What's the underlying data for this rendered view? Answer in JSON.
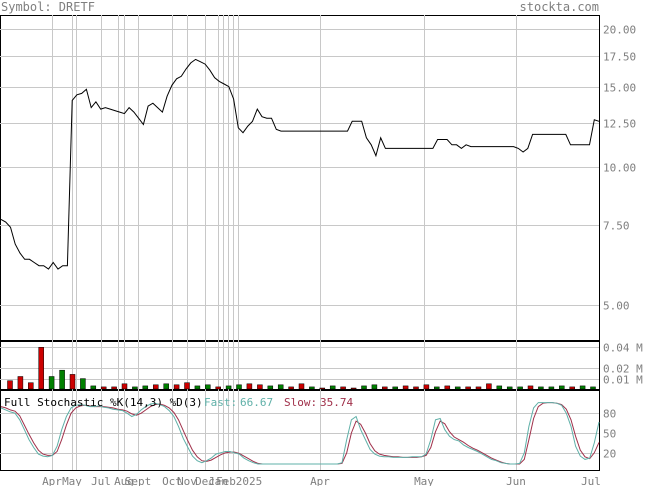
{
  "header": {
    "symbol_text": "Symbol: DRETF",
    "brand": "stockta.com"
  },
  "colors": {
    "price_line": "#000000",
    "grid": "#c8c8c8",
    "vol_up": "#008000",
    "vol_down": "#cc0000",
    "fast": "#5fb0a8",
    "slow": "#a0304a",
    "label": "#7f7f7f"
  },
  "chart_data": [
    {
      "type": "line",
      "name": "price",
      "y_scale": "log",
      "y_ticks": [
        "20.00",
        "17.50",
        "15.00",
        "12.50",
        "10.00",
        "7.50",
        "5.00"
      ],
      "y_tick_values": [
        20,
        17.5,
        15,
        12.5,
        10,
        7.5,
        5
      ],
      "x_tick_labels": [
        "Apr",
        "May",
        "Jul",
        "Aug",
        "Sept",
        "Oct",
        "Nov",
        "Dec",
        "Jan",
        "Feb",
        "2025",
        "Apr",
        "May",
        "Jun",
        "Jul"
      ],
      "values": [
        7.7,
        7.6,
        7.4,
        6.8,
        6.5,
        6.3,
        6.3,
        6.2,
        6.1,
        6.1,
        6.0,
        6.2,
        6.0,
        6.1,
        6.1,
        14.0,
        14.4,
        14.5,
        14.8,
        13.5,
        13.9,
        13.4,
        13.5,
        13.4,
        13.3,
        13.2,
        13.1,
        13.5,
        13.2,
        12.8,
        12.4,
        13.6,
        13.8,
        13.5,
        13.2,
        14.3,
        15.1,
        15.6,
        15.8,
        16.4,
        16.9,
        17.2,
        17.0,
        16.8,
        16.3,
        15.7,
        15.4,
        15.2,
        15.0,
        14.1,
        12.2,
        11.9,
        12.3,
        12.6,
        13.4,
        12.9,
        12.8,
        12.8,
        12.1,
        12.0,
        12.0,
        12.0,
        12.0,
        12.0,
        12.0,
        12.0,
        12.0,
        12.0,
        12.0,
        12.0,
        12.0,
        12.0,
        12.0,
        12.0,
        12.6,
        12.6,
        12.6,
        11.6,
        11.2,
        10.6,
        11.6,
        11.0,
        11.0,
        11.0,
        11.0,
        11.0,
        11.0,
        11.0,
        11.0,
        11.0,
        11.0,
        11.0,
        11.5,
        11.5,
        11.5,
        11.2,
        11.2,
        11.0,
        11.2,
        11.1,
        11.1,
        11.1,
        11.1,
        11.1,
        11.1,
        11.1,
        11.1,
        11.1,
        11.1,
        11.0,
        10.8,
        11.0,
        11.8,
        11.8,
        11.8,
        11.8,
        11.8,
        11.8,
        11.8,
        11.8,
        11.2,
        11.2,
        11.2,
        11.2,
        11.2,
        12.7,
        12.6
      ]
    },
    {
      "type": "bar",
      "name": "volume",
      "y_ticks": [
        "0.04 M",
        "0.02 M",
        "0.01 M"
      ],
      "y_tick_values": [
        0.04,
        0.02,
        0.01
      ],
      "bars": [
        {
          "v": 0.008,
          "up": false
        },
        {
          "v": 0.012,
          "up": false
        },
        {
          "v": 0.006,
          "up": false
        },
        {
          "v": 0.04,
          "up": false
        },
        {
          "v": 0.012,
          "up": true
        },
        {
          "v": 0.018,
          "up": true
        },
        {
          "v": 0.014,
          "up": false
        },
        {
          "v": 0.01,
          "up": true
        },
        {
          "v": 0.003,
          "up": true
        },
        {
          "v": 0.002,
          "up": false
        },
        {
          "v": 0.002,
          "up": false
        },
        {
          "v": 0.005,
          "up": false
        },
        {
          "v": 0.002,
          "up": true
        },
        {
          "v": 0.003,
          "up": true
        },
        {
          "v": 0.004,
          "up": false
        },
        {
          "v": 0.005,
          "up": true
        },
        {
          "v": 0.004,
          "up": false
        },
        {
          "v": 0.006,
          "up": false
        },
        {
          "v": 0.003,
          "up": true
        },
        {
          "v": 0.004,
          "up": true
        },
        {
          "v": 0.002,
          "up": false
        },
        {
          "v": 0.003,
          "up": true
        },
        {
          "v": 0.004,
          "up": true
        },
        {
          "v": 0.005,
          "up": false
        },
        {
          "v": 0.004,
          "up": false
        },
        {
          "v": 0.003,
          "up": true
        },
        {
          "v": 0.004,
          "up": true
        },
        {
          "v": 0.002,
          "up": false
        },
        {
          "v": 0.005,
          "up": false
        },
        {
          "v": 0.002,
          "up": true
        },
        {
          "v": 0.001,
          "up": false
        },
        {
          "v": 0.003,
          "up": true
        },
        {
          "v": 0.002,
          "up": false
        },
        {
          "v": 0.001,
          "up": false
        },
        {
          "v": 0.003,
          "up": true
        },
        {
          "v": 0.004,
          "up": true
        },
        {
          "v": 0.002,
          "up": false
        },
        {
          "v": 0.002,
          "up": true
        },
        {
          "v": 0.003,
          "up": false
        },
        {
          "v": 0.002,
          "up": false
        },
        {
          "v": 0.004,
          "up": false
        },
        {
          "v": 0.002,
          "up": true
        },
        {
          "v": 0.003,
          "up": false
        },
        {
          "v": 0.002,
          "up": true
        },
        {
          "v": 0.002,
          "up": false
        },
        {
          "v": 0.002,
          "up": false
        },
        {
          "v": 0.005,
          "up": false
        },
        {
          "v": 0.003,
          "up": true
        },
        {
          "v": 0.002,
          "up": true
        },
        {
          "v": 0.002,
          "up": true
        },
        {
          "v": 0.003,
          "up": false
        },
        {
          "v": 0.002,
          "up": true
        },
        {
          "v": 0.002,
          "up": true
        },
        {
          "v": 0.003,
          "up": true
        },
        {
          "v": 0.002,
          "up": false
        },
        {
          "v": 0.003,
          "up": true
        },
        {
          "v": 0.002,
          "up": true
        }
      ]
    },
    {
      "type": "line",
      "name": "stochastic",
      "title": "Full Stochastic %K(14,3) %D(3)",
      "fast_label": "Fast:",
      "fast_value": "66.67",
      "slow_label": "Slow:",
      "slow_value": "35.74",
      "y_ticks": [
        "80",
        "50",
        "20"
      ],
      "y_tick_values": [
        80,
        50,
        20
      ],
      "ylim": [
        0,
        100
      ],
      "fast": [
        88,
        85,
        82,
        80,
        70,
        55,
        40,
        28,
        18,
        15,
        14,
        16,
        30,
        55,
        75,
        88,
        92,
        93,
        92,
        90,
        90,
        91,
        89,
        88,
        86,
        85,
        84,
        80,
        75,
        78,
        85,
        90,
        94,
        95,
        93,
        90,
        84,
        75,
        60,
        42,
        28,
        15,
        8,
        5,
        8,
        12,
        18,
        20,
        22,
        22,
        20,
        18,
        12,
        8,
        5,
        3,
        3,
        3,
        3,
        3,
        3,
        3,
        3,
        3,
        3,
        3,
        3,
        3,
        3,
        3,
        3,
        3,
        3,
        5,
        40,
        70,
        75,
        55,
        40,
        25,
        18,
        15,
        14,
        14,
        13,
        13,
        13,
        13,
        14,
        14,
        14,
        18,
        40,
        70,
        72,
        55,
        45,
        40,
        38,
        32,
        28,
        25,
        22,
        18,
        14,
        10,
        8,
        5,
        4,
        3,
        3,
        4,
        20,
        60,
        88,
        96,
        96,
        96,
        96,
        95,
        92,
        80,
        60,
        30,
        15,
        10,
        12,
        35,
        66.67
      ],
      "slow": [
        90,
        88,
        85,
        83,
        76,
        62,
        48,
        35,
        24,
        18,
        16,
        16,
        22,
        40,
        62,
        80,
        88,
        91,
        92,
        91,
        90,
        90,
        90,
        89,
        88,
        86,
        85,
        83,
        79,
        77,
        80,
        85,
        90,
        93,
        94,
        92,
        88,
        81,
        70,
        54,
        38,
        24,
        14,
        8,
        7,
        9,
        13,
        17,
        20,
        21,
        21,
        19,
        15,
        11,
        7,
        4,
        3,
        3,
        3,
        3,
        3,
        3,
        3,
        3,
        3,
        3,
        3,
        3,
        3,
        3,
        3,
        3,
        3,
        4,
        20,
        50,
        68,
        63,
        50,
        34,
        23,
        18,
        16,
        15,
        14,
        14,
        13,
        13,
        13,
        13,
        14,
        16,
        28,
        52,
        68,
        64,
        52,
        44,
        40,
        36,
        31,
        27,
        24,
        20,
        16,
        12,
        9,
        6,
        4,
        3,
        3,
        3,
        10,
        40,
        72,
        90,
        95,
        96,
        96,
        95,
        93,
        86,
        70,
        45,
        24,
        14,
        11,
        20,
        35.74
      ]
    }
  ]
}
